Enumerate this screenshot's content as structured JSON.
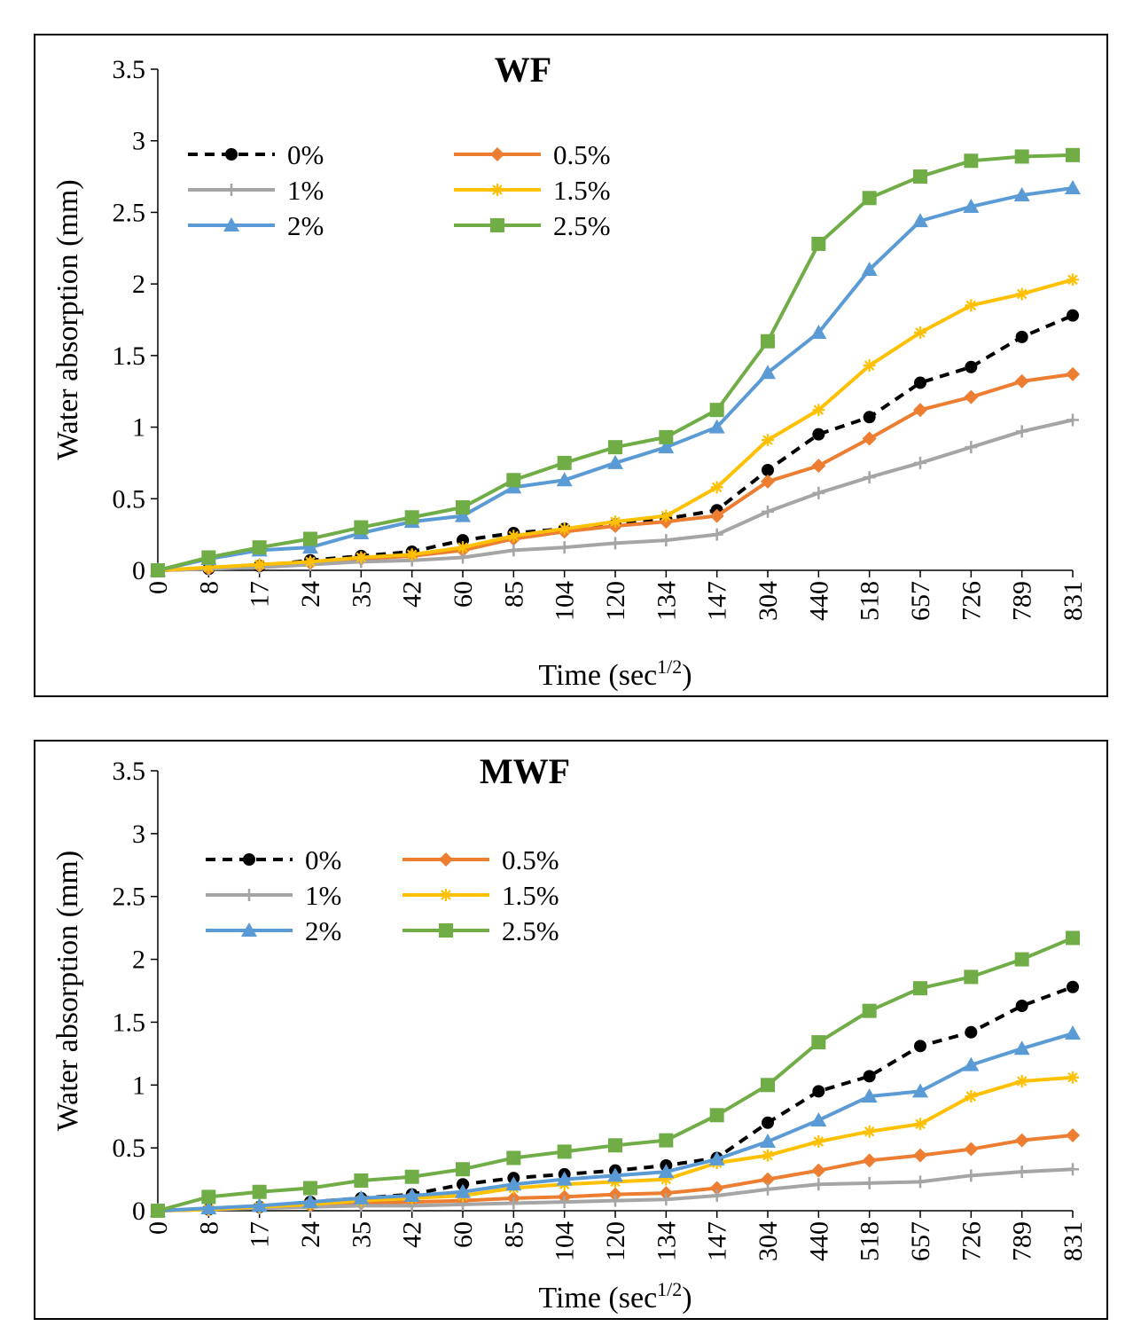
{
  "chart_data": [
    {
      "type": "line",
      "title": "WF",
      "xlabel": "Time (sec",
      "xlabel_sup": "1/2",
      "xlabel_end": ")",
      "ylabel": "Water absorption (mm)",
      "ylim": [
        0,
        3.5
      ],
      "yticks": [
        "0",
        "0.5",
        "1",
        "1.5",
        "2",
        "2.5",
        "3",
        "3.5"
      ],
      "categories": [
        "0",
        "8",
        "17",
        "24",
        "35",
        "42",
        "60",
        "85",
        "104",
        "120",
        "134",
        "147",
        "304",
        "440",
        "518",
        "657",
        "726",
        "789",
        "831"
      ],
      "series": [
        {
          "name": "0%",
          "color": "#000000",
          "marker": "circle",
          "dashed": true,
          "values": [
            0,
            0.01,
            0.03,
            0.07,
            0.1,
            0.13,
            0.21,
            0.26,
            0.29,
            0.32,
            0.36,
            0.42,
            0.7,
            0.95,
            1.07,
            1.31,
            1.42,
            1.63,
            1.78
          ]
        },
        {
          "name": "0.5%",
          "color": "#ED7D31",
          "marker": "diamond",
          "dashed": false,
          "values": [
            0,
            0.01,
            0.03,
            0.05,
            0.08,
            0.1,
            0.14,
            0.22,
            0.27,
            0.31,
            0.34,
            0.38,
            0.62,
            0.73,
            0.92,
            1.12,
            1.21,
            1.32,
            1.37
          ]
        },
        {
          "name": "1%",
          "color": "#A5A5A5",
          "marker": "plus",
          "dashed": false,
          "values": [
            0,
            0.01,
            0.02,
            0.04,
            0.06,
            0.07,
            0.09,
            0.14,
            0.16,
            0.19,
            0.21,
            0.25,
            0.41,
            0.54,
            0.65,
            0.75,
            0.86,
            0.97,
            1.05
          ]
        },
        {
          "name": "1.5%",
          "color": "#FFC000",
          "marker": "asterisk",
          "dashed": false,
          "values": [
            0,
            0.02,
            0.04,
            0.06,
            0.09,
            0.11,
            0.16,
            0.24,
            0.29,
            0.34,
            0.38,
            0.58,
            0.91,
            1.12,
            1.43,
            1.66,
            1.85,
            1.93,
            2.03
          ]
        },
        {
          "name": "2%",
          "color": "#5B9BD5",
          "marker": "triangle",
          "dashed": false,
          "values": [
            0,
            0.08,
            0.14,
            0.16,
            0.26,
            0.34,
            0.38,
            0.58,
            0.63,
            0.75,
            0.86,
            1.0,
            1.38,
            1.66,
            2.1,
            2.44,
            2.54,
            2.62,
            2.67
          ]
        },
        {
          "name": "2.5%",
          "color": "#70AD47",
          "marker": "square",
          "dashed": false,
          "values": [
            0,
            0.09,
            0.16,
            0.22,
            0.3,
            0.37,
            0.44,
            0.63,
            0.75,
            0.86,
            0.93,
            1.12,
            1.6,
            2.28,
            2.6,
            2.75,
            2.86,
            2.89,
            2.9
          ]
        }
      ]
    },
    {
      "type": "line",
      "title": "MWF",
      "xlabel": "Time (sec",
      "xlabel_sup": "1/2",
      "xlabel_end": ")",
      "ylabel": "Water absorption (mm)",
      "ylim": [
        0,
        3.5
      ],
      "yticks": [
        "0",
        "0.5",
        "1",
        "1.5",
        "2",
        "2.5",
        "3",
        "3.5"
      ],
      "categories": [
        "0",
        "8",
        "17",
        "24",
        "35",
        "42",
        "60",
        "85",
        "104",
        "120",
        "134",
        "147",
        "304",
        "440",
        "518",
        "657",
        "726",
        "789",
        "831"
      ],
      "series": [
        {
          "name": "0%",
          "color": "#000000",
          "marker": "circle",
          "dashed": true,
          "values": [
            0,
            0.01,
            0.03,
            0.07,
            0.1,
            0.13,
            0.21,
            0.26,
            0.29,
            0.32,
            0.36,
            0.42,
            0.7,
            0.95,
            1.07,
            1.31,
            1.42,
            1.63,
            1.78
          ]
        },
        {
          "name": "0.5%",
          "color": "#ED7D31",
          "marker": "diamond",
          "dashed": false,
          "values": [
            0,
            0.01,
            0.03,
            0.04,
            0.06,
            0.07,
            0.08,
            0.1,
            0.11,
            0.13,
            0.14,
            0.18,
            0.25,
            0.32,
            0.4,
            0.44,
            0.49,
            0.56,
            0.6
          ]
        },
        {
          "name": "1%",
          "color": "#A5A5A5",
          "marker": "plus",
          "dashed": false,
          "values": [
            0,
            0.01,
            0.02,
            0.03,
            0.04,
            0.04,
            0.05,
            0.06,
            0.07,
            0.08,
            0.09,
            0.12,
            0.17,
            0.21,
            0.22,
            0.23,
            0.28,
            0.31,
            0.33
          ]
        },
        {
          "name": "1.5%",
          "color": "#FFC000",
          "marker": "asterisk",
          "dashed": false,
          "values": [
            0,
            0.01,
            0.03,
            0.05,
            0.08,
            0.1,
            0.12,
            0.18,
            0.21,
            0.23,
            0.25,
            0.38,
            0.44,
            0.55,
            0.63,
            0.69,
            0.91,
            1.03,
            1.06
          ]
        },
        {
          "name": "2%",
          "color": "#5B9BD5",
          "marker": "triangle",
          "dashed": false,
          "values": [
            0,
            0.02,
            0.04,
            0.07,
            0.1,
            0.12,
            0.15,
            0.21,
            0.25,
            0.28,
            0.31,
            0.41,
            0.55,
            0.72,
            0.91,
            0.95,
            1.16,
            1.29,
            1.41
          ]
        },
        {
          "name": "2.5%",
          "color": "#70AD47",
          "marker": "square",
          "dashed": false,
          "values": [
            0,
            0.11,
            0.15,
            0.18,
            0.24,
            0.27,
            0.33,
            0.42,
            0.47,
            0.52,
            0.56,
            0.76,
            1.0,
            1.34,
            1.59,
            1.77,
            1.86,
            2.0,
            2.17
          ]
        }
      ]
    }
  ]
}
